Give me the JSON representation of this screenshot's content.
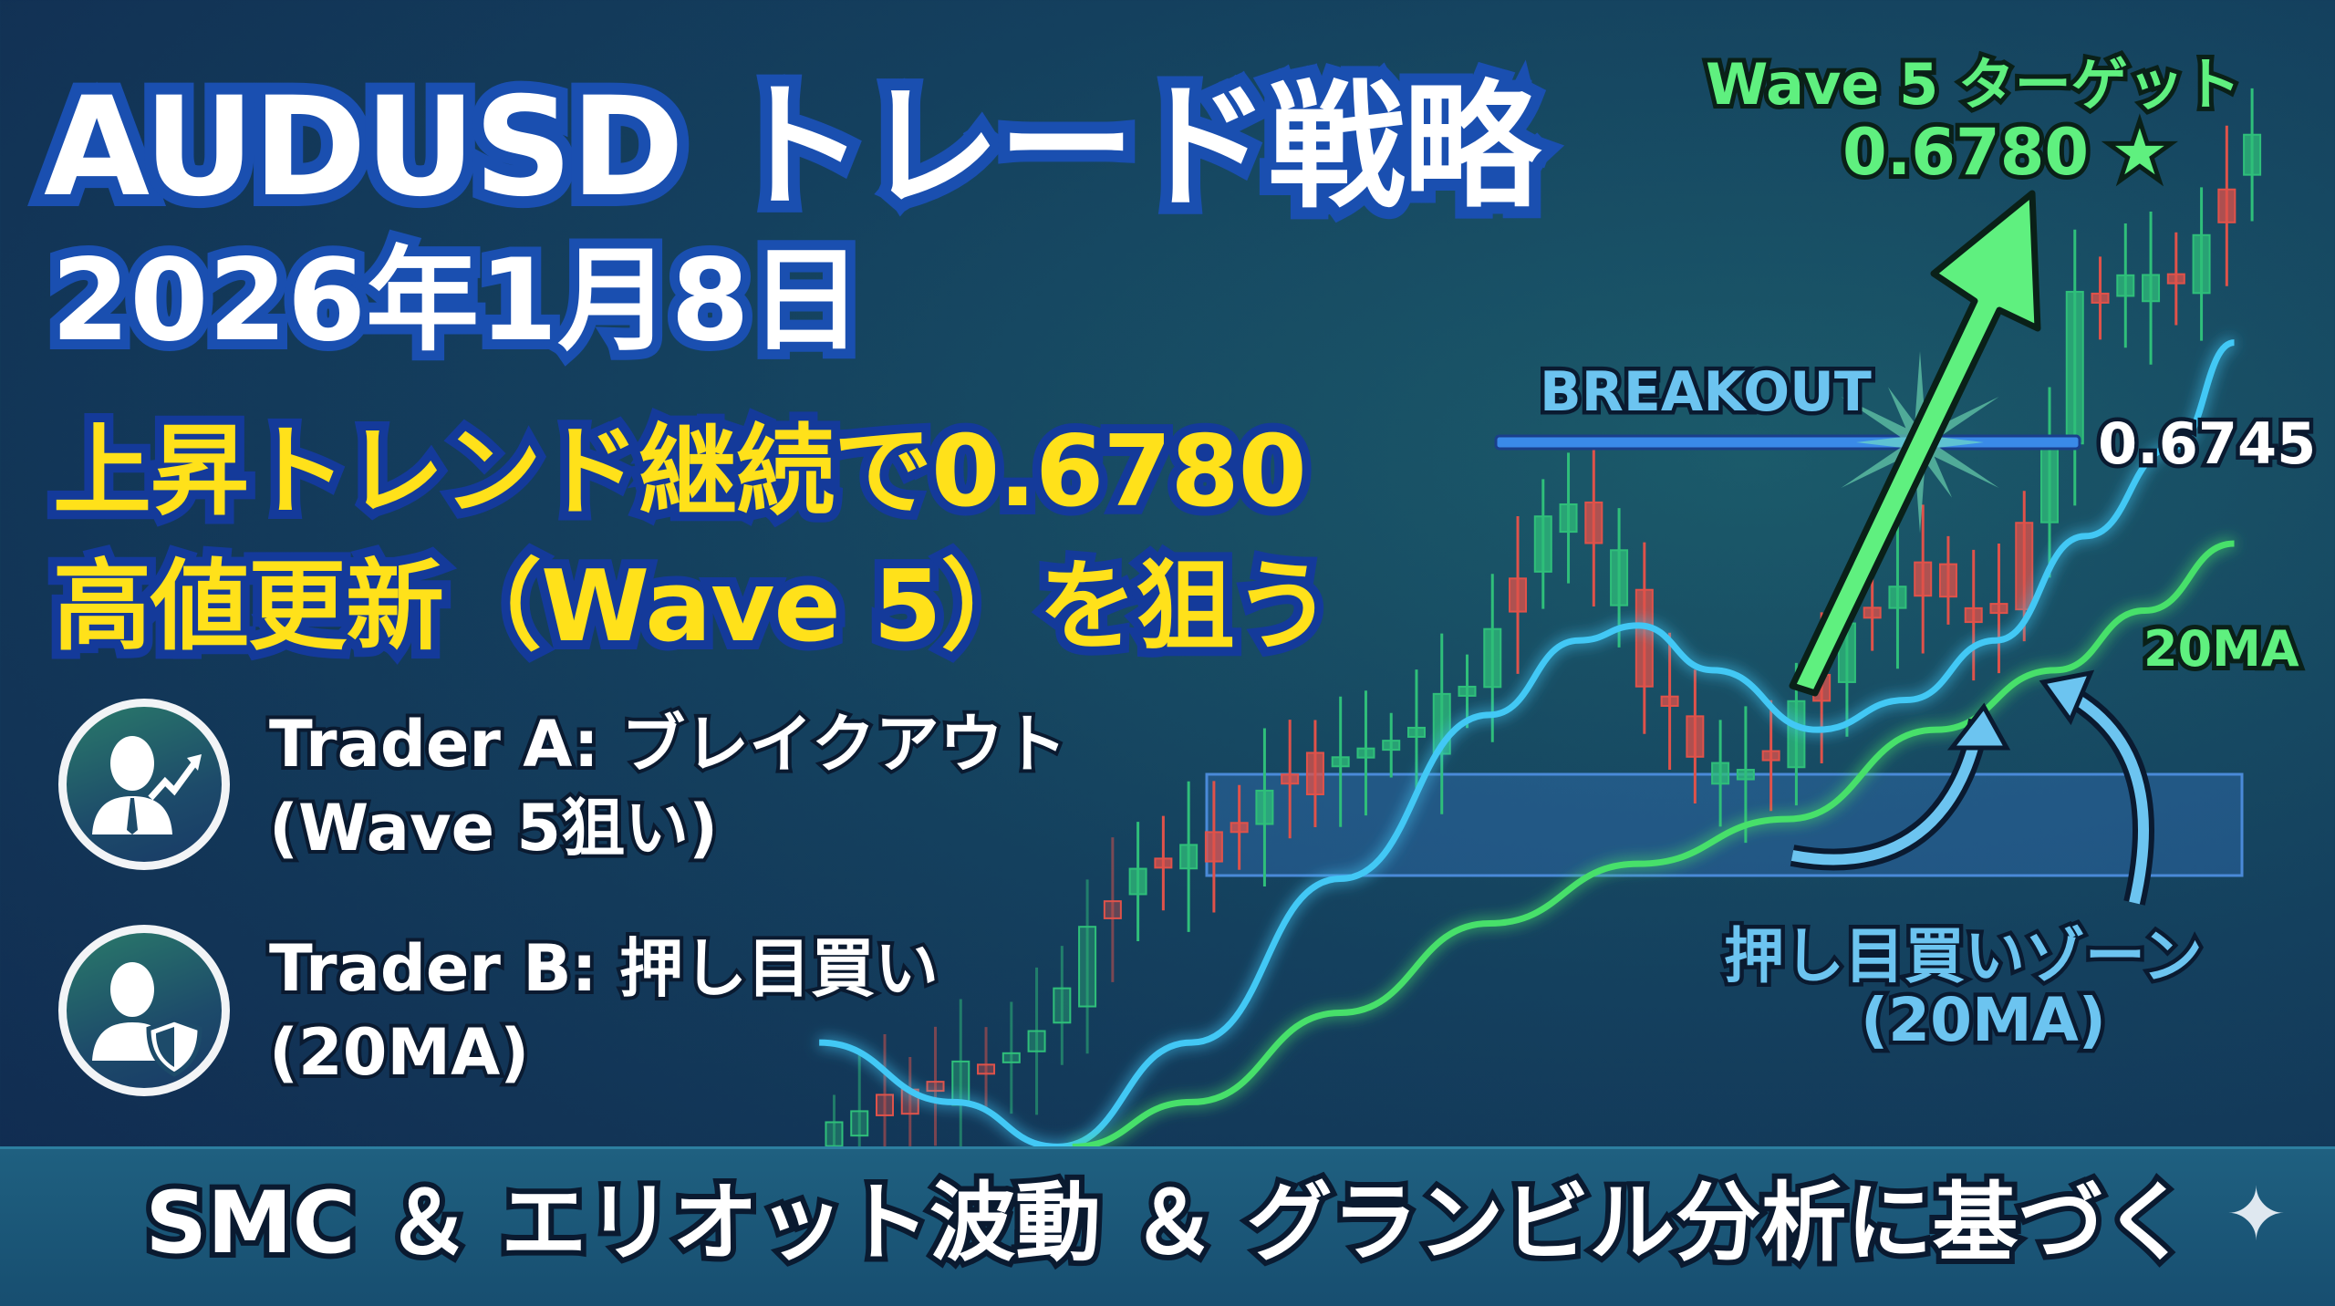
{
  "header": {
    "title": "AUDUSD トレード戦略",
    "date": "2026年1月8日",
    "headline_line1": "上昇トレンド継続で0.6780",
    "headline_line2": "高値更新（Wave 5）を狙う"
  },
  "traders": [
    {
      "line1": "Trader A: ブレイクアウト",
      "line2": "(Wave 5狙い)",
      "icon": "businessman-chart-arrow-icon"
    },
    {
      "line1": "Trader B: 押し目買い",
      "line2": "(20MA)",
      "icon": "person-shield-icon"
    }
  ],
  "chart": {
    "target_label": "Wave 5 ターゲット",
    "target_price": "0.6780 ★",
    "breakout_label": "BREAKOUT",
    "breakout_price": "0.6745",
    "ma_label": "20MA",
    "zone_label_line1": "押し目買いゾーン",
    "zone_label_line2": "(20MA)",
    "colors": {
      "bull": "#2fbf7a",
      "bear": "#e0524a",
      "ma_fast": "#43c8f5",
      "ma_20": "#47e06a",
      "breakout_line": "#3a8ae8",
      "target": "#5ff07f"
    }
  },
  "footer": {
    "text": "SMC ＆ エリオット波動 ＆ グランビル分析に基づく",
    "icon": "sparkle-icon"
  }
}
